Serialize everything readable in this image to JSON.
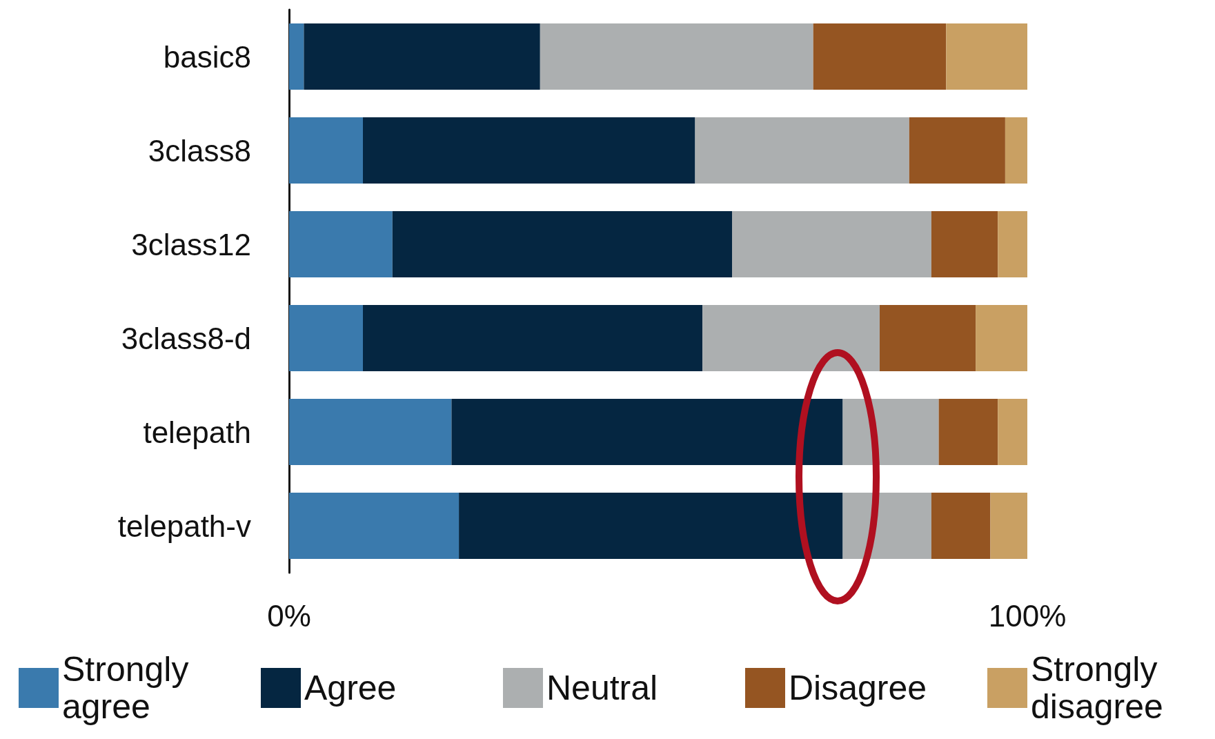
{
  "chart_data": {
    "type": "bar",
    "orientation": "horizontal",
    "stacked": true,
    "categories": [
      "basic8",
      "3class8",
      "3class12",
      "3class8-d",
      "telepath",
      "telepath-v"
    ],
    "series": [
      {
        "name": "Strongly agree",
        "color": "#3a7aad",
        "values": [
          2,
          10,
          14,
          10,
          22,
          23
        ]
      },
      {
        "name": "Agree",
        "color": "#052641",
        "values": [
          32,
          45,
          46,
          46,
          53,
          52
        ]
      },
      {
        "name": "Neutral",
        "color": "#acafb0",
        "values": [
          37,
          29,
          27,
          24,
          13,
          12
        ]
      },
      {
        "name": "Disagree",
        "color": "#955522",
        "values": [
          18,
          13,
          9,
          13,
          8,
          8
        ]
      },
      {
        "name": "Strongly disagree",
        "color": "#c9a063",
        "values": [
          11,
          3,
          4,
          7,
          4,
          5
        ]
      }
    ],
    "xlim": [
      0,
      100
    ],
    "xticks": [
      {
        "value": 0,
        "label": "0%"
      },
      {
        "value": 100,
        "label": "100%"
      }
    ],
    "grid": false,
    "legend": "bottom"
  }
}
